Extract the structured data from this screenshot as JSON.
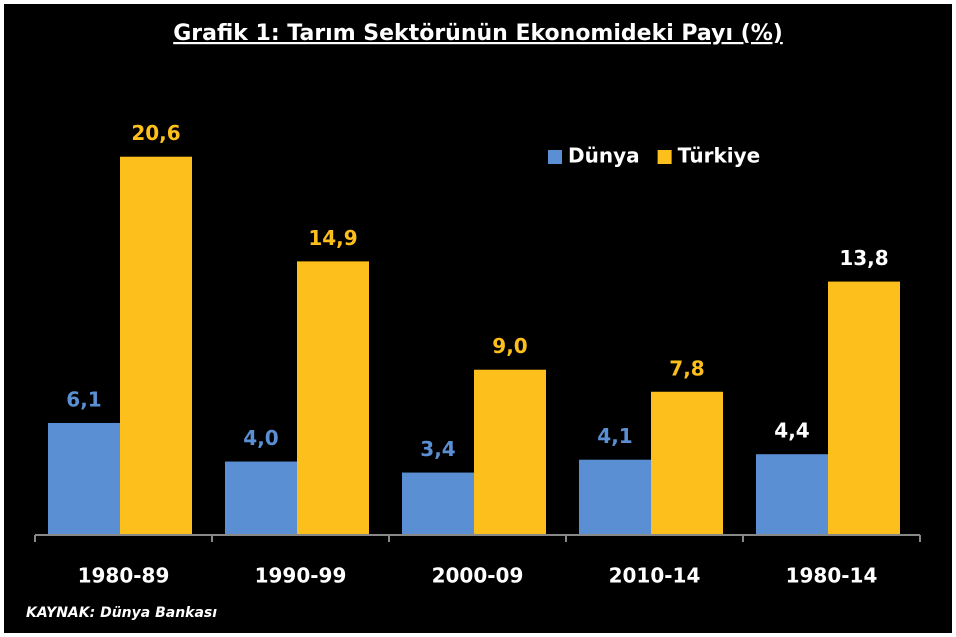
{
  "chart_data": {
    "type": "bar",
    "title": "Grafik 1: Tarım Sektörünün Ekonomideki Payı (%)",
    "categories": [
      "1980-89",
      "1990-99",
      "2000-09",
      "2010-14",
      "1980-14"
    ],
    "series": [
      {
        "name": "Dünya",
        "color": "#5b8fd4",
        "values": [
          6.1,
          4.0,
          3.4,
          4.1,
          4.4
        ],
        "value_labels": [
          "6,1",
          "4,0",
          "3,4",
          "4,1",
          "4,4"
        ],
        "label_colors": [
          "#5b8fd4",
          "#5b8fd4",
          "#5b8fd4",
          "#5b8fd4",
          "#ffffff"
        ]
      },
      {
        "name": "Türkiye",
        "color": "#fdbf1b",
        "values": [
          20.6,
          14.9,
          9.0,
          7.8,
          13.8
        ],
        "value_labels": [
          "20,6",
          "14,9",
          "9,0",
          "7,8",
          "13,8"
        ],
        "label_colors": [
          "#fdbf1b",
          "#fdbf1b",
          "#fdbf1b",
          "#fdbf1b",
          "#ffffff"
        ]
      }
    ],
    "ylim": [
      0,
      22
    ],
    "legend": "top-right",
    "source": "KAYNAK: Dünya Bankası"
  }
}
